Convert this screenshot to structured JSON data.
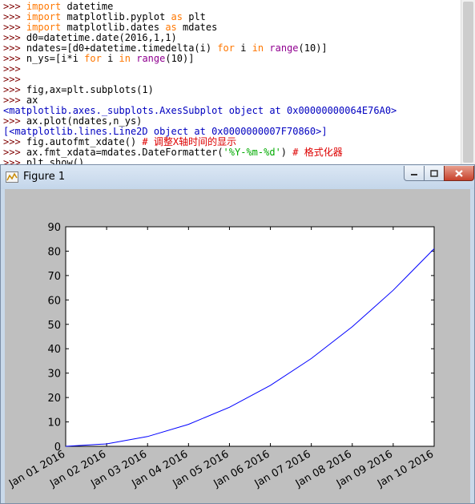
{
  "shell": {
    "lines": [
      [
        [
          "prompt",
          ">>> "
        ],
        [
          "kw",
          "import"
        ],
        [
          "plain",
          " datetime"
        ]
      ],
      [
        [
          "prompt",
          ">>> "
        ],
        [
          "kw",
          "import"
        ],
        [
          "plain",
          " matplotlib.pyplot "
        ],
        [
          "kw",
          "as"
        ],
        [
          "plain",
          " plt"
        ]
      ],
      [
        [
          "prompt",
          ">>> "
        ],
        [
          "kw",
          "import"
        ],
        [
          "plain",
          " matplotlib.dates "
        ],
        [
          "kw",
          "as"
        ],
        [
          "plain",
          " mdates"
        ]
      ],
      [
        [
          "prompt",
          ">>> "
        ],
        [
          "plain",
          "d0=datetime.date(2016,1,1)"
        ]
      ],
      [
        [
          "prompt",
          ">>> "
        ],
        [
          "plain",
          "ndates=[d0+datetime.timedelta(i) "
        ],
        [
          "kw",
          "for"
        ],
        [
          "plain",
          " i "
        ],
        [
          "kw",
          "in"
        ],
        [
          "plain",
          " "
        ],
        [
          "builtin",
          "range"
        ],
        [
          "plain",
          "(10)]"
        ]
      ],
      [
        [
          "prompt",
          ">>> "
        ],
        [
          "plain",
          "n_ys=[i*i "
        ],
        [
          "kw",
          "for"
        ],
        [
          "plain",
          " i "
        ],
        [
          "kw",
          "in"
        ],
        [
          "plain",
          " "
        ],
        [
          "builtin",
          "range"
        ],
        [
          "plain",
          "(10)]"
        ]
      ],
      [
        [
          "prompt",
          ">>> "
        ]
      ],
      [
        [
          "prompt",
          ">>> "
        ]
      ],
      [
        [
          "prompt",
          ">>> "
        ],
        [
          "plain",
          "fig,ax=plt.subplots(1)"
        ]
      ],
      [
        [
          "prompt",
          ">>> "
        ],
        [
          "plain",
          "ax"
        ]
      ],
      [
        [
          "out",
          "<matplotlib.axes._subplots.AxesSubplot object at 0x00000000064E76A0>"
        ]
      ],
      [
        [
          "prompt",
          ">>> "
        ],
        [
          "plain",
          "ax.plot(ndates,n_ys)"
        ]
      ],
      [
        [
          "out",
          "[<matplotlib.lines.Line2D object at 0x0000000007F70860>]"
        ]
      ],
      [
        [
          "prompt",
          ">>> "
        ],
        [
          "plain",
          "fig.autofmt_xdate() "
        ],
        [
          "comment",
          "# 调整X轴时间的显示"
        ]
      ],
      [
        [
          "prompt",
          ">>> "
        ],
        [
          "plain",
          "ax.fmt_xdata=mdates.DateFormatter("
        ],
        [
          "str",
          "'%Y-%m-%d'"
        ],
        [
          "plain",
          ") "
        ],
        [
          "comment",
          "# 格式化器"
        ]
      ],
      [
        [
          "prompt",
          ">>> "
        ],
        [
          "plain",
          "plt.show()"
        ]
      ]
    ]
  },
  "figure": {
    "title": "Figure 1",
    "icon": "matplotlib-figure-icon"
  },
  "colors": {
    "line": "#0000ff",
    "canvas_bg": "#bfbfbf",
    "axes_bg": "#ffffff"
  },
  "chart_data": {
    "type": "line",
    "x": [
      "Jan 01 2016",
      "Jan 02 2016",
      "Jan 03 2016",
      "Jan 04 2016",
      "Jan 05 2016",
      "Jan 06 2016",
      "Jan 07 2016",
      "Jan 08 2016",
      "Jan 09 2016",
      "Jan 10 2016"
    ],
    "values": [
      0,
      1,
      4,
      9,
      16,
      25,
      36,
      49,
      64,
      81
    ],
    "yticks": [
      0,
      10,
      20,
      30,
      40,
      50,
      60,
      70,
      80,
      90
    ],
    "ylim": [
      0,
      90
    ],
    "grid": false,
    "title": "",
    "xlabel": "",
    "ylabel": ""
  }
}
